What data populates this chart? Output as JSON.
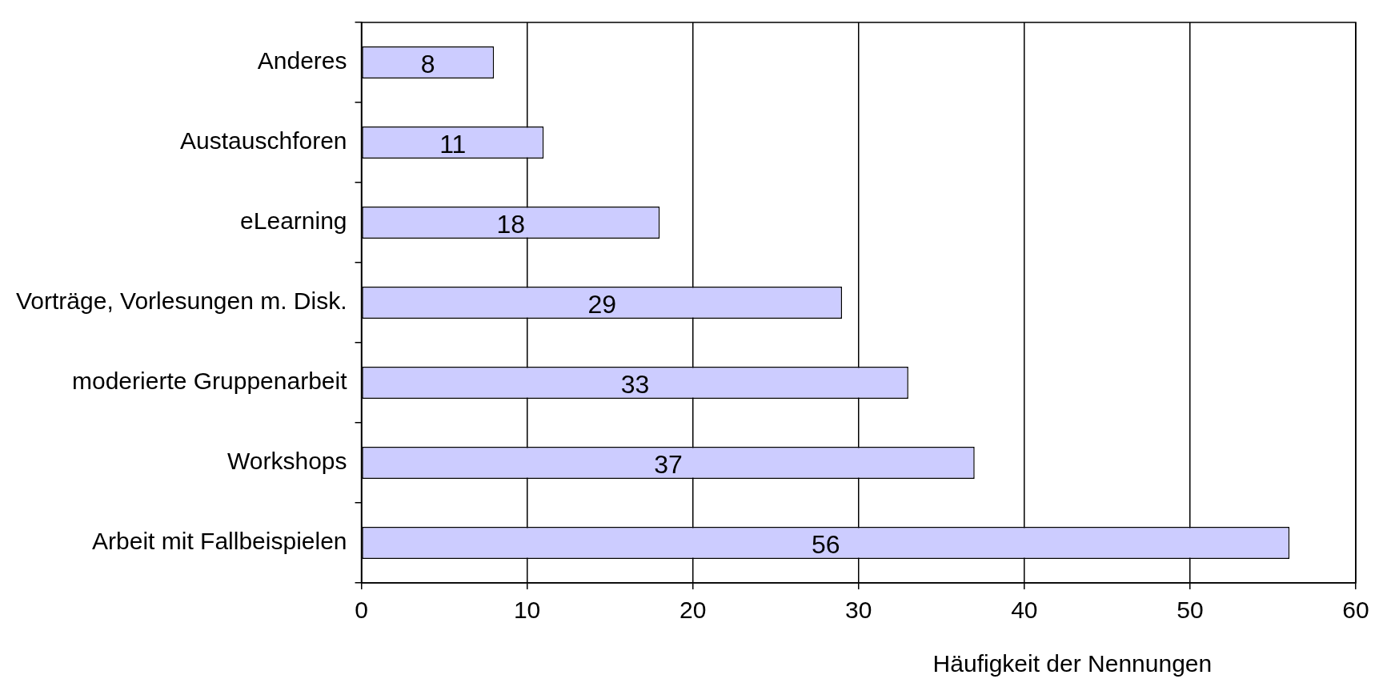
{
  "chart_data": {
    "type": "bar",
    "orientation": "horizontal",
    "xlabel": "Häufigkeit der Nennungen",
    "categories": [
      "Anderes",
      "Austauschforen",
      "eLearning",
      "Vorträge, Vorlesungen m. Disk.",
      "moderierte Gruppenarbeit",
      "Workshops",
      "Arbeit mit Fallbeispielen"
    ],
    "values": [
      8,
      11,
      18,
      29,
      33,
      37,
      56
    ],
    "color": "#ccccff",
    "xlim": [
      0,
      60
    ],
    "xticks": [
      0,
      10,
      20,
      30,
      40,
      50,
      60
    ],
    "grid": "x",
    "data_labels": true,
    "legend": false
  }
}
